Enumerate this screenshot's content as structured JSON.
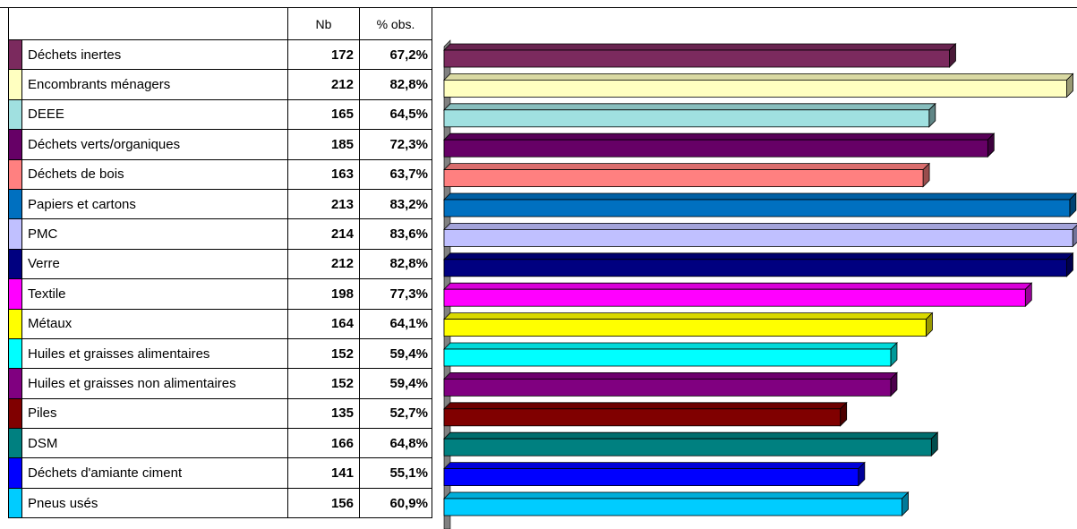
{
  "table": {
    "headers": {
      "nb": "Nb",
      "pct": "% obs."
    },
    "rows": [
      {
        "label": "Déchets inertes",
        "nb": "172",
        "pct": "67,2%"
      },
      {
        "label": "Encombrants ménagers",
        "nb": "212",
        "pct": "82,8%"
      },
      {
        "label": "DEEE",
        "nb": "165",
        "pct": "64,5%"
      },
      {
        "label": "Déchets verts/organiques",
        "nb": "185",
        "pct": "72,3%"
      },
      {
        "label": "Déchets de bois",
        "nb": "163",
        "pct": "63,7%"
      },
      {
        "label": "Papiers et cartons",
        "nb": "213",
        "pct": "83,2%"
      },
      {
        "label": "PMC",
        "nb": "214",
        "pct": "83,6%"
      },
      {
        "label": "Verre",
        "nb": "212",
        "pct": "82,8%"
      },
      {
        "label": "Textile",
        "nb": "198",
        "pct": "77,3%"
      },
      {
        "label": "Métaux",
        "nb": "164",
        "pct": "64,1%"
      },
      {
        "label": "Huiles et graisses alimentaires",
        "nb": "152",
        "pct": "59,4%"
      },
      {
        "label": "Huiles et graisses non alimentaires",
        "nb": "152",
        "pct": "59,4%"
      },
      {
        "label": "Piles",
        "nb": "135",
        "pct": "52,7%"
      },
      {
        "label": "DSM",
        "nb": "166",
        "pct": "64,8%"
      },
      {
        "label": "Déchets d'amiante ciment",
        "nb": "141",
        "pct": "55,1%"
      },
      {
        "label": "Pneus usés",
        "nb": "156",
        "pct": "60,9%"
      }
    ]
  },
  "chart_data": {
    "type": "bar",
    "orientation": "horizontal",
    "categories": [
      "Déchets inertes",
      "Encombrants ménagers",
      "DEEE",
      "Déchets verts/organiques",
      "Déchets de bois",
      "Papiers et cartons",
      "PMC",
      "Verre",
      "Textile",
      "Métaux",
      "Huiles et graisses alimentaires",
      "Huiles et graisses non alimentaires",
      "Piles",
      "DSM",
      "Déchets d'amiante ciment",
      "Pneus usés"
    ],
    "values": [
      67.2,
      82.8,
      64.5,
      72.3,
      63.7,
      83.2,
      83.6,
      82.8,
      77.3,
      64.1,
      59.4,
      59.4,
      52.7,
      64.8,
      55.1,
      60.9
    ],
    "colors": [
      "#7b2a5e",
      "#ffffc0",
      "#a0e0e0",
      "#660066",
      "#ff8080",
      "#0070c0",
      "#c0c0ff",
      "#000080",
      "#ff00ff",
      "#ffff00",
      "#00ffff",
      "#800080",
      "#800000",
      "#008080",
      "#0000ff",
      "#00ccff"
    ],
    "style": "3d",
    "title": "",
    "xlabel": "",
    "ylabel": ""
  }
}
